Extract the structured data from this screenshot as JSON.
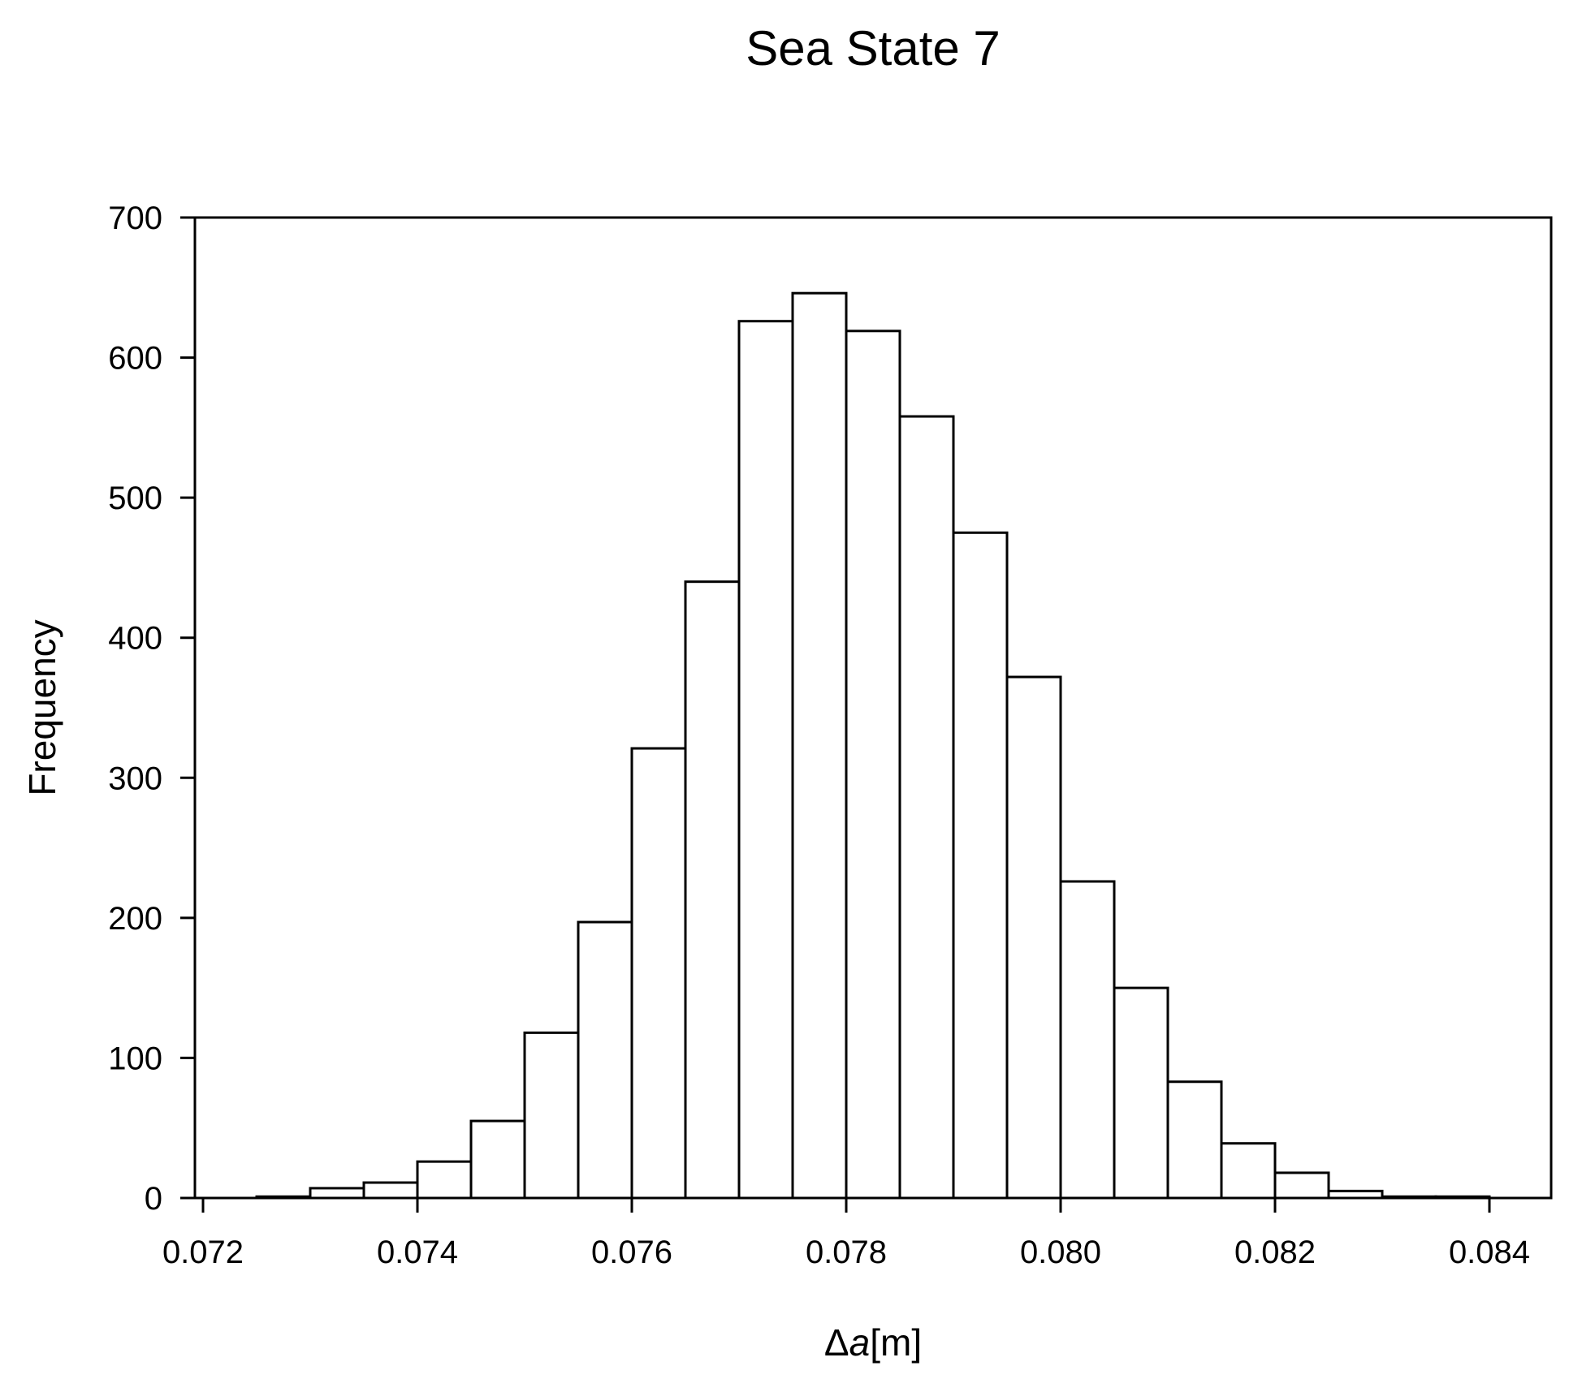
{
  "chart_data": {
    "type": "bar",
    "title": "Sea State 7",
    "ylabel": "Frequency",
    "xlabel": {
      "delta": "Δ",
      "var": "a",
      "unit": "[m]"
    },
    "xlim": [
      0.072,
      0.084
    ],
    "ylim": [
      0,
      700
    ],
    "bin_width": 0.0005,
    "bins": [
      {
        "x0": 0.0725,
        "x1": 0.073,
        "value": 1
      },
      {
        "x0": 0.073,
        "x1": 0.0735,
        "value": 7
      },
      {
        "x0": 0.0735,
        "x1": 0.074,
        "value": 11
      },
      {
        "x0": 0.074,
        "x1": 0.0745,
        "value": 26
      },
      {
        "x0": 0.0745,
        "x1": 0.075,
        "value": 55
      },
      {
        "x0": 0.075,
        "x1": 0.0755,
        "value": 118
      },
      {
        "x0": 0.0755,
        "x1": 0.076,
        "value": 197
      },
      {
        "x0": 0.076,
        "x1": 0.0765,
        "value": 321
      },
      {
        "x0": 0.0765,
        "x1": 0.077,
        "value": 440
      },
      {
        "x0": 0.077,
        "x1": 0.0775,
        "value": 626
      },
      {
        "x0": 0.0775,
        "x1": 0.078,
        "value": 646
      },
      {
        "x0": 0.078,
        "x1": 0.0785,
        "value": 619
      },
      {
        "x0": 0.0785,
        "x1": 0.079,
        "value": 558
      },
      {
        "x0": 0.079,
        "x1": 0.0795,
        "value": 475
      },
      {
        "x0": 0.0795,
        "x1": 0.08,
        "value": 372
      },
      {
        "x0": 0.08,
        "x1": 0.0805,
        "value": 226
      },
      {
        "x0": 0.0805,
        "x1": 0.081,
        "value": 150
      },
      {
        "x0": 0.081,
        "x1": 0.0815,
        "value": 83
      },
      {
        "x0": 0.0815,
        "x1": 0.082,
        "value": 39
      },
      {
        "x0": 0.082,
        "x1": 0.0825,
        "value": 18
      },
      {
        "x0": 0.0825,
        "x1": 0.083,
        "value": 5
      },
      {
        "x0": 0.083,
        "x1": 0.0835,
        "value": 1
      },
      {
        "x0": 0.0835,
        "x1": 0.084,
        "value": 1
      }
    ],
    "x_ticks": [
      {
        "value": 0.072,
        "label": "0.072"
      },
      {
        "value": 0.074,
        "label": "0.074"
      },
      {
        "value": 0.076,
        "label": "0.076"
      },
      {
        "value": 0.078,
        "label": "0.078"
      },
      {
        "value": 0.08,
        "label": "0.080"
      },
      {
        "value": 0.082,
        "label": "0.082"
      },
      {
        "value": 0.084,
        "label": "0.084"
      }
    ],
    "y_ticks": [
      {
        "value": 0,
        "label": "0"
      },
      {
        "value": 100,
        "label": "100"
      },
      {
        "value": 200,
        "label": "200"
      },
      {
        "value": 300,
        "label": "300"
      },
      {
        "value": 400,
        "label": "400"
      },
      {
        "value": 500,
        "label": "500"
      },
      {
        "value": 600,
        "label": "600"
      },
      {
        "value": 700,
        "label": "700"
      }
    ],
    "grid": false,
    "bar_fill": "#ffffff",
    "bar_stroke": "#000000"
  }
}
